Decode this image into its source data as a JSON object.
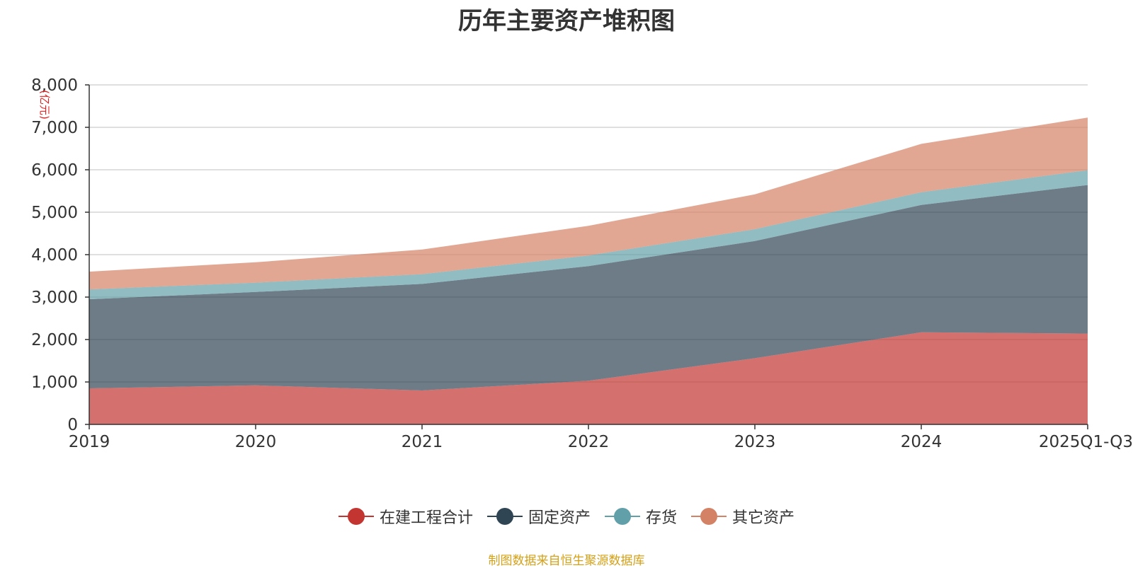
{
  "chart_data": {
    "type": "area",
    "stacked": true,
    "title": "历年主要资产堆积图",
    "ylabel": "(亿元)",
    "xlabel": "",
    "categories": [
      "2019",
      "2020",
      "2021",
      "2022",
      "2023",
      "2024",
      "2025Q1-Q3"
    ],
    "ylim": [
      0,
      8000
    ],
    "yticks": [
      0,
      1000,
      2000,
      3000,
      4000,
      5000,
      6000,
      7000,
      8000
    ],
    "ytick_labels": [
      "0",
      "1,000",
      "2,000",
      "3,000",
      "4,000",
      "5,000",
      "6,000",
      "7,000",
      "8,000"
    ],
    "grid": true,
    "legend_position": "bottom",
    "series": [
      {
        "name": "在建工程合计",
        "color": "#c23531",
        "values": [
          850,
          920,
          800,
          1030,
          1560,
          2170,
          2140
        ]
      },
      {
        "name": "固定资产",
        "color": "#2f4554",
        "values": [
          2100,
          2200,
          2510,
          2700,
          2760,
          3000,
          3500
        ]
      },
      {
        "name": "存货",
        "color": "#61a0a8",
        "values": [
          230,
          220,
          230,
          250,
          280,
          300,
          350
        ]
      },
      {
        "name": "其它资产",
        "color": "#d48265",
        "values": [
          420,
          480,
          580,
          700,
          820,
          1140,
          1240
        ]
      }
    ]
  },
  "source_note": "制图数据来自恒生聚源数据库"
}
